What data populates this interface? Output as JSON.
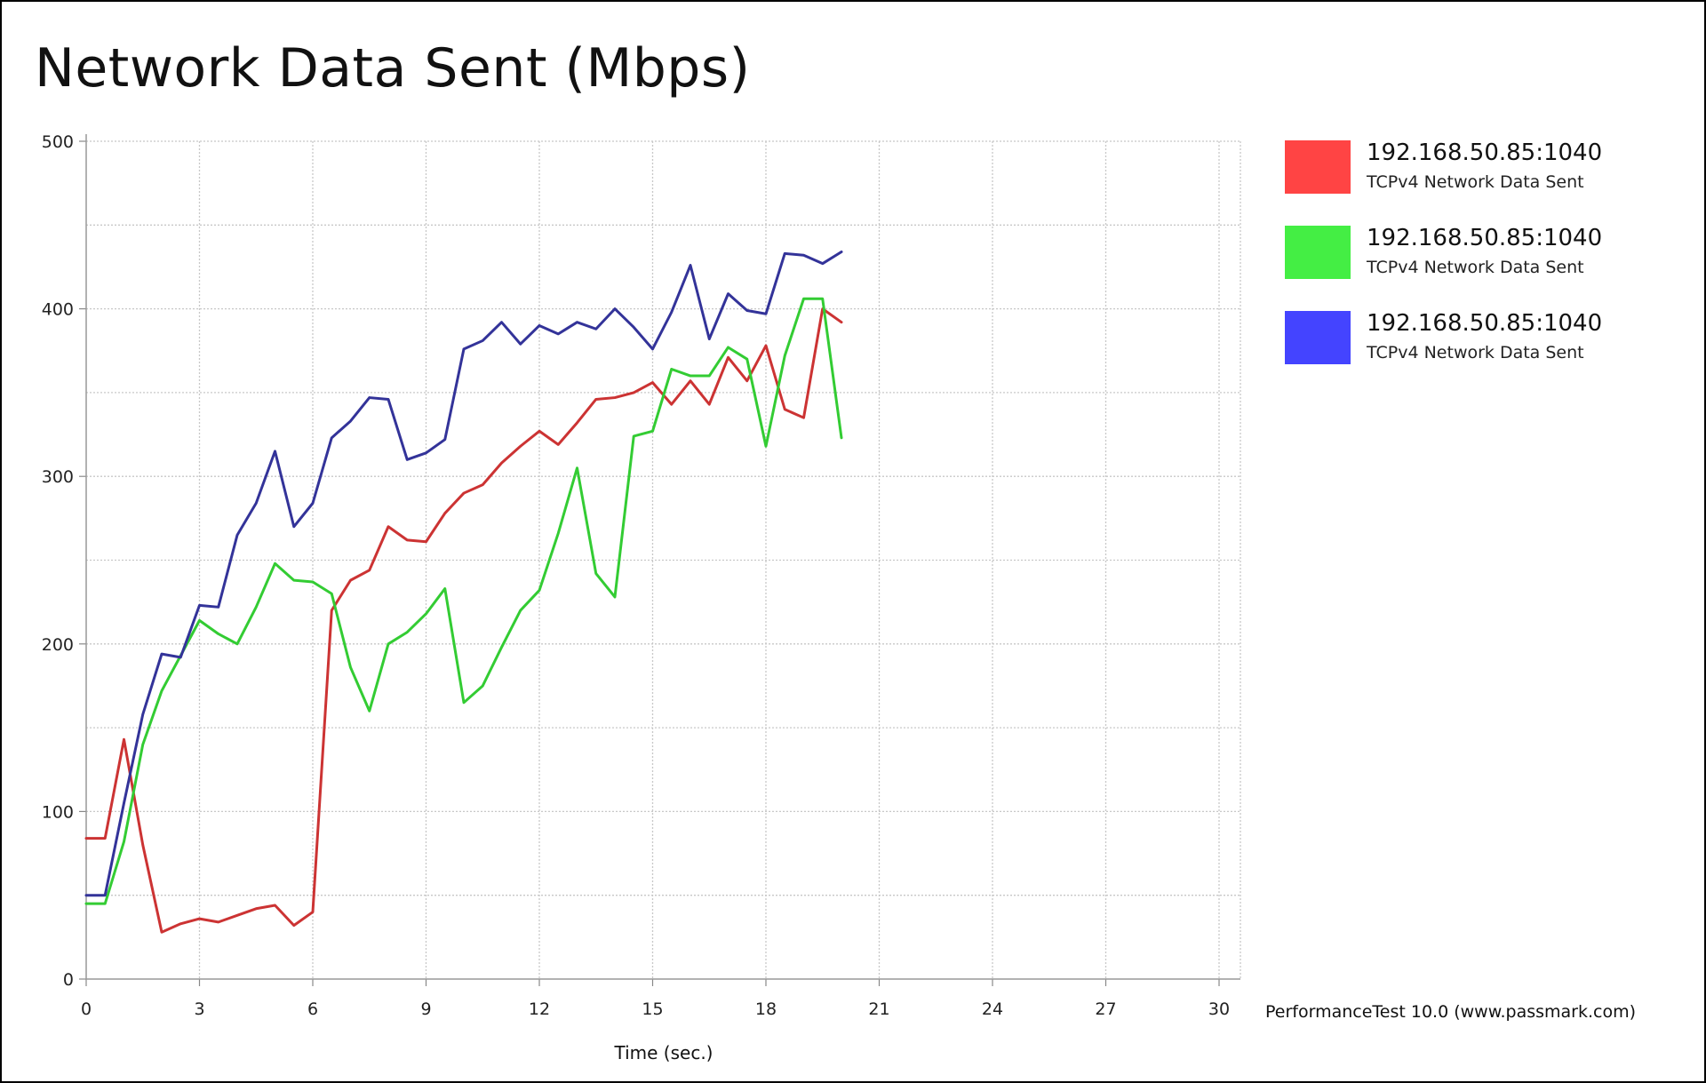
{
  "chart_data": {
    "type": "line",
    "title": "Network Data Sent (Mbps)",
    "xlabel": "Time (sec.)",
    "ylabel": "",
    "xlim": [
      0,
      30
    ],
    "ylim": [
      0,
      500
    ],
    "xticks": [
      "0",
      "3",
      "6",
      "9",
      "12",
      "15",
      "18",
      "21",
      "24",
      "27",
      "30"
    ],
    "yticks": [
      "0",
      "100",
      "200",
      "300",
      "400",
      "500"
    ],
    "grid": true,
    "legend_position": "right",
    "x": [
      0,
      0.5,
      1,
      1.5,
      2,
      2.5,
      3,
      3.5,
      4,
      4.5,
      5,
      5.5,
      6,
      6.5,
      7,
      7.5,
      8,
      8.5,
      9,
      9.5,
      10,
      10.5,
      11,
      11.5,
      12,
      12.5,
      13,
      13.5,
      14,
      14.5,
      15,
      15.5,
      16,
      16.5,
      17,
      17.5,
      18,
      18.5,
      19,
      19.5,
      20
    ],
    "series": [
      {
        "name": "192.168.50.85:1040",
        "description": "TCPv4 Network Data Sent",
        "color": "#cc3333",
        "values": [
          84,
          84,
          143,
          80,
          28,
          33,
          36,
          34,
          38,
          42,
          44,
          32,
          40,
          220,
          238,
          244,
          270,
          262,
          261,
          278,
          290,
          295,
          308,
          318,
          327,
          319,
          332,
          346,
          347,
          350,
          356,
          343,
          357,
          343,
          371,
          357,
          378,
          340,
          335,
          400,
          392
        ]
      },
      {
        "name": "192.168.50.85:1040",
        "description": "TCPv4 Network Data Sent",
        "color": "#33cc33",
        "values": [
          45,
          45,
          82,
          140,
          172,
          193,
          214,
          206,
          200,
          222,
          248,
          238,
          237,
          230,
          186,
          160,
          200,
          207,
          218,
          233,
          165,
          175,
          198,
          220,
          232,
          266,
          305,
          242,
          228,
          324,
          327,
          364,
          360,
          360,
          377,
          370,
          318,
          372,
          406,
          406,
          323
        ]
      },
      {
        "name": "192.168.50.85:1040",
        "description": "TCPv4 Network Data Sent",
        "color": "#333399",
        "values": [
          50,
          50,
          105,
          158,
          194,
          192,
          223,
          222,
          265,
          284,
          315,
          270,
          284,
          323,
          333,
          347,
          346,
          310,
          314,
          322,
          376,
          381,
          392,
          379,
          390,
          385,
          392,
          388,
          400,
          389,
          376,
          398,
          426,
          382,
          409,
          399,
          397,
          433,
          432,
          427,
          434
        ]
      }
    ]
  },
  "legend": {
    "items": [
      {
        "name": "192.168.50.85:1040",
        "sub": "TCPv4 Network Data Sent",
        "color": "#ff4444"
      },
      {
        "name": "192.168.50.85:1040",
        "sub": "TCPv4 Network Data Sent",
        "color": "#44ee44"
      },
      {
        "name": "192.168.50.85:1040",
        "sub": "TCPv4 Network Data Sent",
        "color": "#4444ff"
      }
    ]
  },
  "footer": {
    "credit": "PerformanceTest 10.0 (www.passmark.com)"
  }
}
